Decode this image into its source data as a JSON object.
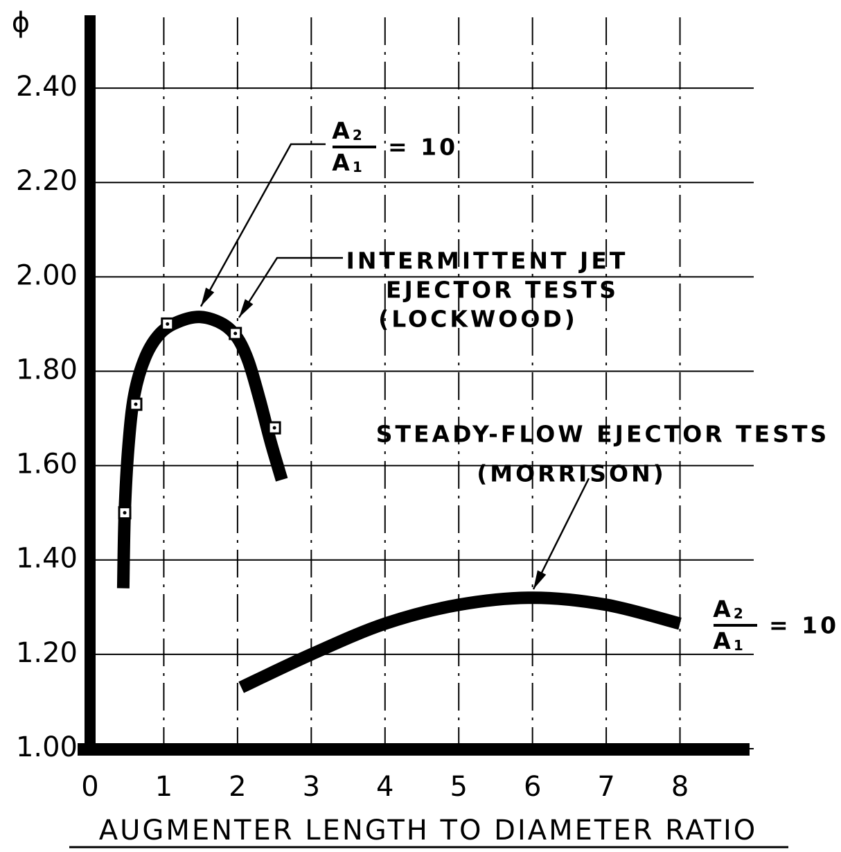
{
  "chart_data": {
    "type": "line",
    "y_label": "ϕ",
    "x_label": "AUGMENTER LENGTH TO DIAMETER RATIO",
    "xlim": [
      0,
      9
    ],
    "ylim": [
      1.0,
      2.55
    ],
    "xticks": [
      0,
      1,
      2,
      3,
      4,
      5,
      6,
      7,
      8
    ],
    "yticks": [
      {
        "value": 1.0,
        "label": "1.00"
      },
      {
        "value": 1.2,
        "label": "1.20"
      },
      {
        "value": 1.4,
        "label": "1.40"
      },
      {
        "value": 1.6,
        "label": "1.60"
      },
      {
        "value": 1.8,
        "label": "1.80"
      },
      {
        "value": 2.0,
        "label": "2.00"
      },
      {
        "value": 2.2,
        "label": "2.20"
      },
      {
        "value": 2.4,
        "label": "2.40"
      }
    ],
    "grid": true,
    "series": [
      {
        "color": "#000000",
        "x": [
          0.45,
          0.47,
          0.52,
          0.6,
          0.75,
          0.95,
          1.2,
          1.5,
          1.8,
          2.0,
          2.15,
          2.3,
          2.45,
          2.6
        ],
        "values": [
          1.34,
          1.5,
          1.64,
          1.75,
          1.83,
          1.88,
          1.905,
          1.915,
          1.9,
          1.87,
          1.82,
          1.74,
          1.65,
          1.57
        ]
      },
      {
        "color": "#000000",
        "x": [
          2.05,
          3,
          4,
          5,
          6,
          7,
          8
        ],
        "values": [
          1.13,
          1.2,
          1.265,
          1.305,
          1.32,
          1.305,
          1.265
        ]
      }
    ],
    "points": {
      "color": "#000000",
      "x": [
        0.47,
        0.62,
        1.05,
        1.97,
        2.5
      ],
      "values": [
        1.5,
        1.73,
        1.9,
        1.88,
        1.68
      ]
    },
    "annotations": {
      "lockwood_lines": [
        "INTERMITTENT JET",
        "EJECTOR TESTS",
        "(LOCKWOOD)"
      ],
      "morrison_lines": [
        "STEADY-FLOW EJECTOR TESTS",
        "(MORRISON)"
      ],
      "ratio_top": {
        "num": "A",
        "num_sub": "2",
        "den": "A",
        "den_sub": "1",
        "rhs": "= 10"
      },
      "ratio_right": {
        "num": "A",
        "num_sub": "2",
        "den": "A",
        "den_sub": "1",
        "rhs": "= 10"
      }
    }
  }
}
